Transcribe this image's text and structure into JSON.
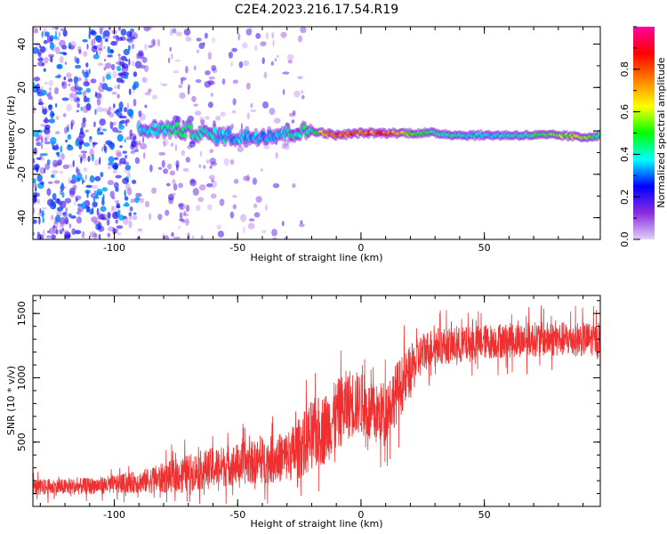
{
  "figure": {
    "title": "C2E4.2023.216.17.54.R19"
  },
  "chart_data": [
    {
      "type": "heatmap",
      "xlabel": "Height of straight line (km)",
      "ylabel": "Frequency (Hz)",
      "xlim": [
        -133,
        97
      ],
      "ylim": [
        -50,
        48
      ],
      "xticks": [
        -100,
        -50,
        0,
        50
      ],
      "yticks": [
        -40,
        -20,
        0,
        20,
        40
      ],
      "grid": false,
      "colorbar": {
        "label": "Normalized spectral amplitude",
        "range": [
          0,
          1
        ],
        "ticks": [
          0.0,
          0.2,
          0.4,
          0.6,
          0.8
        ],
        "tick_labels": [
          "0.0",
          "0.2",
          "0.4",
          "0.6",
          "0.8"
        ],
        "colors": [
          "#e0d0f8",
          "#8a2be2",
          "#0000ff",
          "#00ffff",
          "#00ff00",
          "#ffff00",
          "#ff7f00",
          "#ff0000",
          "#ff00a0"
        ]
      },
      "ridge": {
        "x": [
          -90,
          -80,
          -70,
          -60,
          -50,
          -40,
          -30,
          -20,
          -10,
          0,
          10,
          20,
          30,
          40,
          50,
          60,
          70,
          80,
          90,
          97
        ],
        "frequency": [
          0,
          1,
          0,
          -2,
          -3,
          -2,
          -1,
          0,
          -2,
          -1,
          -1,
          -1,
          -1,
          -2,
          -2,
          -2,
          -2,
          -2,
          -3,
          -2
        ],
        "amplitude": [
          0.35,
          0.4,
          0.45,
          0.38,
          0.35,
          0.35,
          0.4,
          0.45,
          0.85,
          0.75,
          0.8,
          0.55,
          0.45,
          0.4,
          0.38,
          0.4,
          0.45,
          0.55,
          0.6,
          0.4
        ]
      }
    },
    {
      "type": "line",
      "xlabel": "Height of straight line (km)",
      "ylabel": "SNR (10 * v/v)",
      "xlim": [
        -133,
        97
      ],
      "ylim": [
        0,
        1640
      ],
      "xticks": [
        -100,
        -50,
        0,
        50
      ],
      "yticks": [
        500,
        1000,
        1500
      ],
      "grid": false,
      "series": [
        {
          "color": "#f03030",
          "x": [
            -133,
            -120,
            -110,
            -100,
            -90,
            -80,
            -70,
            -60,
            -50,
            -40,
            -30,
            -25,
            -20,
            -15,
            -10,
            -5,
            0,
            5,
            10,
            15,
            20,
            25,
            30,
            40,
            50,
            60,
            70,
            80,
            90,
            97
          ],
          "mean": [
            150,
            150,
            160,
            170,
            190,
            220,
            260,
            300,
            330,
            350,
            390,
            450,
            550,
            600,
            700,
            800,
            800,
            700,
            750,
            900,
            1050,
            1200,
            1250,
            1250,
            1280,
            1290,
            1300,
            1300,
            1300,
            1300
          ],
          "spread": [
            80,
            80,
            80,
            90,
            110,
            150,
            180,
            200,
            200,
            220,
            250,
            300,
            350,
            350,
            350,
            350,
            300,
            300,
            300,
            300,
            250,
            200,
            180,
            180,
            170,
            170,
            170,
            170,
            170,
            160
          ]
        }
      ]
    }
  ]
}
